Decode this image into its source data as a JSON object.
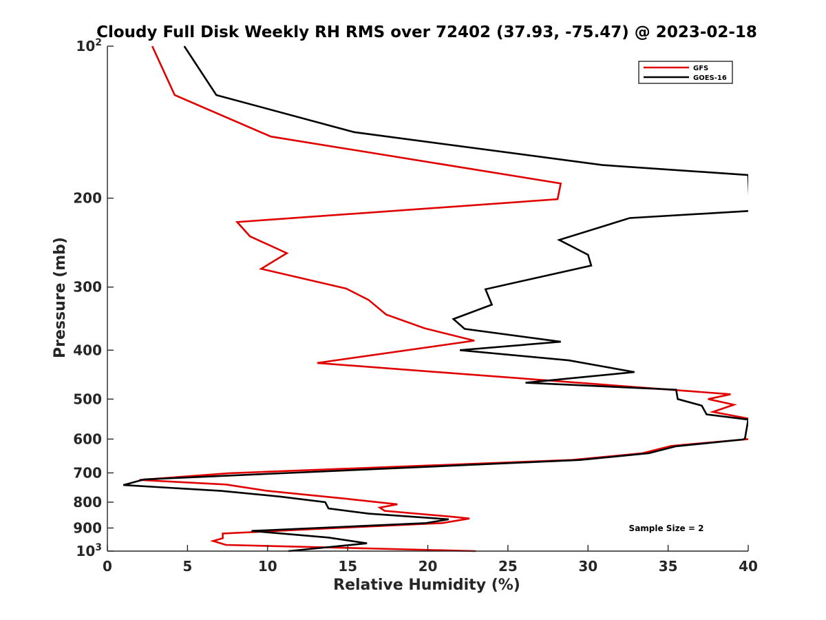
{
  "chart_data": {
    "type": "line",
    "title": "Cloudy Full Disk Weekly RH RMS over 72402 (37.93, -75.47) @ 2023-02-18",
    "xlabel": "Relative Humidity (%)",
    "ylabel": "Pressure (mb)",
    "xlim": [
      0,
      40
    ],
    "ylim": [
      100,
      1000
    ],
    "y_scale": "log",
    "y_reversed": true,
    "x_ticks": [
      "0",
      "5",
      "10",
      "15",
      "20",
      "25",
      "30",
      "35",
      "40"
    ],
    "y_ticks": [
      {
        "value": 100,
        "base": "10",
        "exp": "2"
      },
      {
        "value": 200,
        "label": "200"
      },
      {
        "value": 300,
        "label": "300"
      },
      {
        "value": 400,
        "label": "400"
      },
      {
        "value": 500,
        "label": "500"
      },
      {
        "value": 600,
        "label": "600"
      },
      {
        "value": 700,
        "label": "700"
      },
      {
        "value": 800,
        "label": "800"
      },
      {
        "value": 900,
        "label": "900"
      },
      {
        "value": 1000,
        "base": "10",
        "exp": "3"
      }
    ],
    "legend_position": "top-right",
    "annotation": "Sample Size = 2",
    "series": [
      {
        "name": "GFS",
        "color": "#e00000",
        "points": [
          [
            2.8,
            100
          ],
          [
            4.2,
            125
          ],
          [
            10.2,
            151
          ],
          [
            28.3,
            187
          ],
          [
            28.1,
            201
          ],
          [
            8.1,
            223
          ],
          [
            8.9,
            238
          ],
          [
            11.2,
            257
          ],
          [
            9.6,
            276
          ],
          [
            14.9,
            302
          ],
          [
            16.3,
            318
          ],
          [
            17.4,
            340
          ],
          [
            19.8,
            362
          ],
          [
            22.9,
            383
          ],
          [
            13.1,
            424
          ],
          [
            38.9,
            489
          ],
          [
            37.5,
            500
          ],
          [
            39.1,
            513
          ],
          [
            37.8,
            530
          ],
          [
            40.5,
            550
          ],
          [
            40.3,
            595
          ],
          [
            40.0,
            600
          ],
          [
            35.2,
            619
          ],
          [
            33.4,
            640
          ],
          [
            29.0,
            660
          ],
          [
            7.6,
            701
          ],
          [
            2.0,
            723
          ],
          [
            7.4,
            738
          ],
          [
            10.0,
            760
          ],
          [
            15.0,
            788
          ],
          [
            18.1,
            808
          ],
          [
            17.0,
            820
          ],
          [
            17.3,
            832
          ],
          [
            21.5,
            855
          ],
          [
            22.6,
            862
          ],
          [
            20.9,
            880
          ],
          [
            14.3,
            900
          ],
          [
            7.2,
            923
          ],
          [
            7.2,
            943
          ],
          [
            6.6,
            955
          ],
          [
            7.4,
            972
          ],
          [
            23.0,
            1000
          ]
        ]
      },
      {
        "name": "GOES-16",
        "color": "#000000",
        "points": [
          [
            4.8,
            100
          ],
          [
            6.8,
            125
          ],
          [
            15.4,
            148
          ],
          [
            30.9,
            172
          ],
          [
            40.0,
            180
          ],
          [
            40.1,
            212
          ],
          [
            32.6,
            219
          ],
          [
            28.2,
            242
          ],
          [
            30.0,
            259
          ],
          [
            30.2,
            272
          ],
          [
            23.6,
            303
          ],
          [
            24.0,
            325
          ],
          [
            21.6,
            347
          ],
          [
            22.3,
            363
          ],
          [
            28.3,
            385
          ],
          [
            22.0,
            400
          ],
          [
            28.8,
            419
          ],
          [
            32.9,
            442
          ],
          [
            26.1,
            464
          ],
          [
            35.5,
            479
          ],
          [
            35.6,
            500
          ],
          [
            37.1,
            515
          ],
          [
            37.4,
            536
          ],
          [
            40.0,
            549
          ],
          [
            39.8,
            598
          ],
          [
            39.7,
            601
          ],
          [
            35.5,
            620
          ],
          [
            33.8,
            640
          ],
          [
            29.5,
            660
          ],
          [
            2.3,
            721
          ],
          [
            1.0,
            740
          ],
          [
            7.1,
            760
          ],
          [
            10.8,
            780
          ],
          [
            13.6,
            800
          ],
          [
            13.8,
            823
          ],
          [
            16.3,
            843
          ],
          [
            21.3,
            865
          ],
          [
            19.9,
            880
          ],
          [
            9.0,
            912
          ],
          [
            13.8,
            940
          ],
          [
            16.2,
            965
          ],
          [
            11.3,
            1000
          ]
        ]
      }
    ]
  }
}
